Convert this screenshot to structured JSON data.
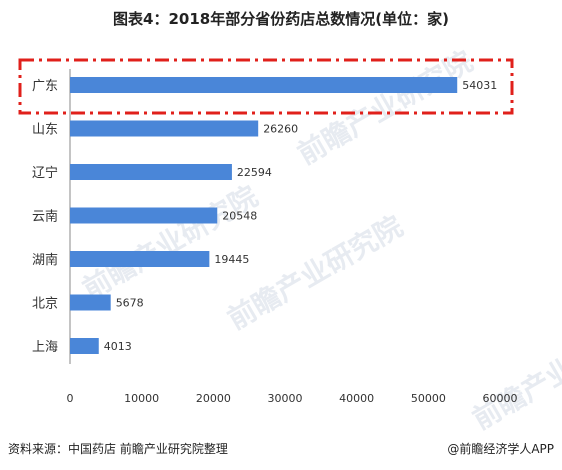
{
  "title": "图表4：2018年部分省份药店总数情况(单位：家)",
  "footer": {
    "source": "资料来源：中国药店 前瞻产业研究院整理",
    "credit": "@前瞻经济学人APP"
  },
  "watermark": "前瞻产业研究院",
  "colors": {
    "bar": "#4a86d8",
    "highlight_box": "#e0201b",
    "axis": "#888888"
  },
  "chart_data": {
    "type": "bar",
    "orientation": "horizontal",
    "title": "图表4：2018年部分省份药店总数情况(单位：家)",
    "categories": [
      "广东",
      "山东",
      "辽宁",
      "云南",
      "湖南",
      "北京",
      "上海"
    ],
    "values": [
      54031,
      26260,
      22594,
      20548,
      19445,
      5678,
      4013
    ],
    "xlim": [
      0,
      60000
    ],
    "xticks": [
      0,
      10000,
      20000,
      30000,
      40000,
      50000,
      60000
    ],
    "grid": false,
    "legend": "none",
    "highlighted_category": "广东"
  }
}
